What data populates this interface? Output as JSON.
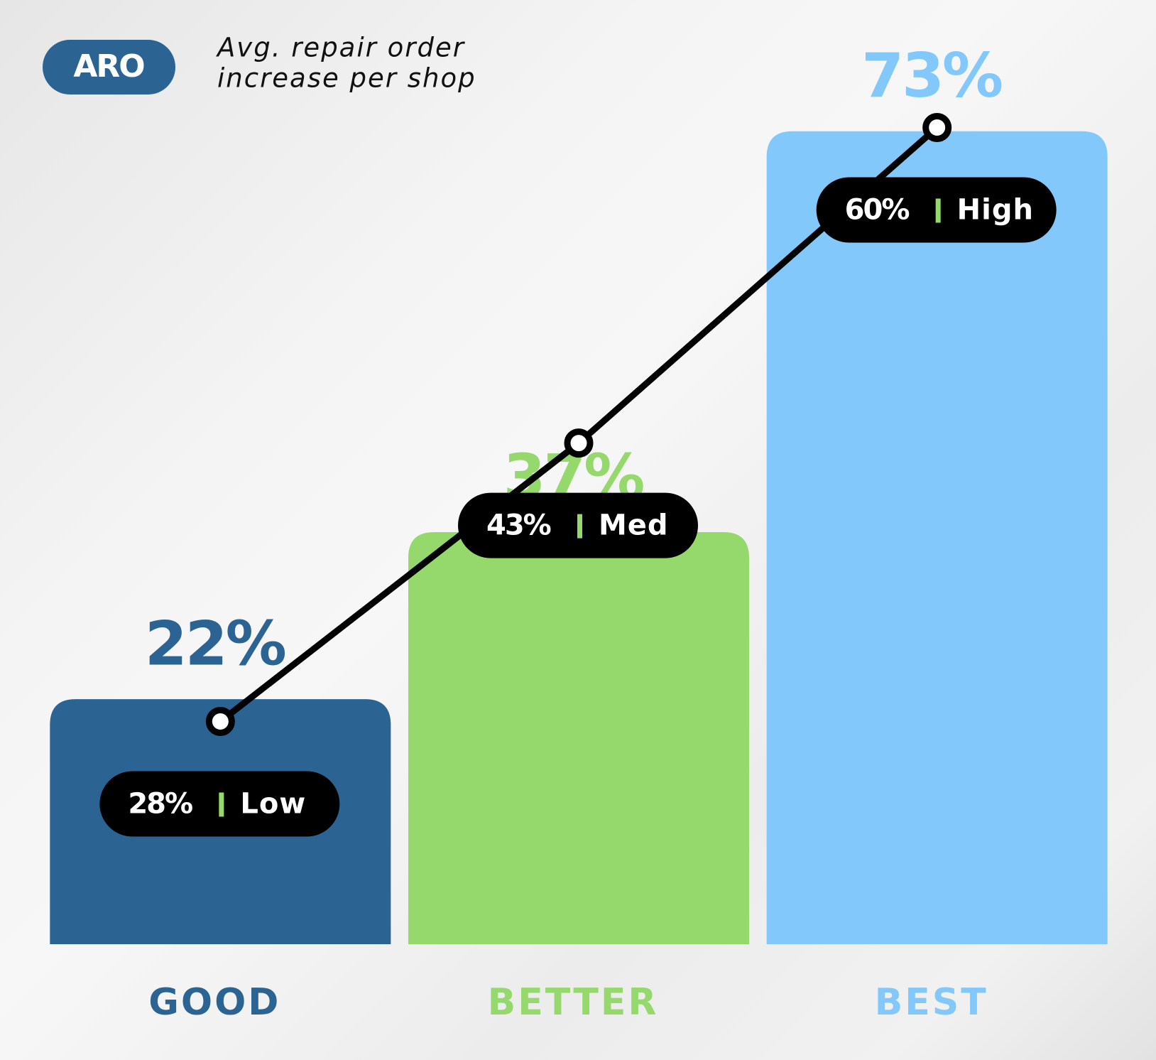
{
  "chart_data": {
    "type": "bar",
    "badge": "ARO",
    "title": [
      "Avg. repair order",
      "increase per shop"
    ],
    "categories": [
      "GOOD",
      "BETTER",
      "BEST"
    ],
    "values": [
      22,
      37,
      73
    ],
    "value_labels": [
      "22%",
      "37%",
      "73%"
    ],
    "colors": [
      "#2b6392",
      "#95d86b",
      "#83c8fa"
    ],
    "ylim": [
      0,
      80
    ],
    "line": {
      "values": [
        28,
        43,
        60
      ],
      "value_labels": [
        "28%",
        "43%",
        "60%"
      ],
      "tags": [
        "Low",
        "Med",
        "High"
      ],
      "color": "#000000"
    },
    "y2lim": [
      16,
      64
    ]
  }
}
